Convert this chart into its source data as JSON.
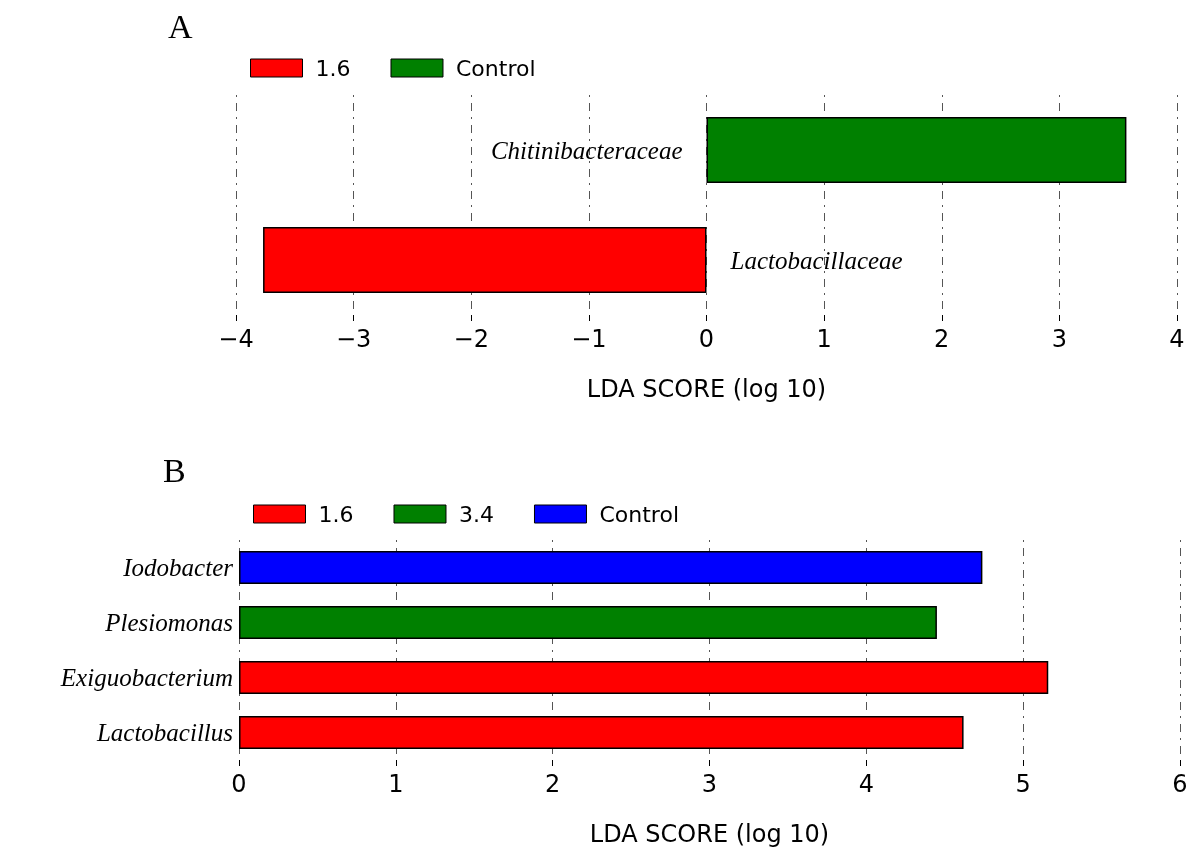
{
  "chart_data": [
    {
      "type": "bar",
      "title": "A",
      "orientation": "horizontal",
      "categories": [
        "Chitinibacteraceae",
        "Lactobacillaceae"
      ],
      "series": [
        {
          "name": "1.6",
          "color": "#ff0000",
          "values": [
            null,
            -3.77
          ]
        },
        {
          "name": "Control",
          "color": "#008000",
          "values": [
            3.57,
            null
          ]
        }
      ],
      "xlabel": "LDA SCORE (log 10)",
      "xlim": [
        -4,
        4
      ],
      "xticks": [
        {
          "value": -4,
          "label": "−4"
        },
        {
          "value": -3,
          "label": "−3"
        },
        {
          "value": -2,
          "label": "−2"
        },
        {
          "value": -1,
          "label": "−1"
        },
        0,
        1,
        2,
        3,
        4
      ],
      "grid": "x",
      "legend": "top left",
      "tick_labels": "x"
    },
    {
      "type": "bar",
      "title": "B",
      "orientation": "horizontal",
      "categories": [
        "Iodobacter",
        "Plesiomonas",
        "Exiguobacterium",
        "Lactobacillus"
      ],
      "series": [
        {
          "name": "1.6",
          "color": "#ff0000",
          "values": [
            null,
            null,
            5.16,
            4.62
          ]
        },
        {
          "name": "3.4",
          "color": "#008000",
          "values": [
            null,
            4.45,
            null,
            null
          ]
        },
        {
          "name": "Control",
          "color": "#0000ff",
          "values": [
            4.74,
            null,
            null,
            null
          ]
        }
      ],
      "xlabel": "LDA SCORE (log 10)",
      "xlim": [
        0,
        6
      ],
      "xticks": [
        0,
        1,
        2,
        3,
        4,
        5,
        6
      ],
      "grid": "x",
      "legend": "top left"
    }
  ]
}
